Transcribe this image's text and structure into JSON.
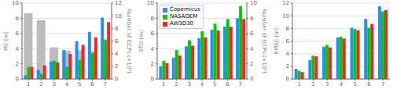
{
  "chart_data": [
    {
      "type": "bar",
      "categories": [
        1,
        2,
        3,
        4,
        5,
        6,
        7
      ],
      "ylabel": "ME (m)",
      "y2label": "Number of GCPs (×10⁴)",
      "ylim": [
        0,
        10
      ],
      "yticks": [
        0,
        2,
        4,
        6,
        8,
        10
      ],
      "y2lim": [
        0,
        12
      ],
      "y2ticks": [
        0,
        2,
        4,
        6,
        8,
        10,
        12
      ],
      "grid": true,
      "series": [
        {
          "color": "#BBBBBB",
          "axis": "y2",
          "values": [
            10.4,
            9.3,
            5.0,
            4.5,
            4.5,
            4.4,
            2.0
          ]
        },
        {
          "name": "Copernicus",
          "color": "#1E90FF",
          "values": [
            0.5,
            1.2,
            2.3,
            3.8,
            5.0,
            6.2,
            8.1
          ]
        },
        {
          "name": "NASADEM",
          "color": "#00CC00",
          "values": [
            1.6,
            0.7,
            2.4,
            1.6,
            2.5,
            3.4,
            5.2
          ]
        },
        {
          "name": "AW3D30",
          "color": "#FF2020",
          "values": [
            1.6,
            1.8,
            2.2,
            3.3,
            4.5,
            5.5,
            7.5
          ]
        }
      ]
    },
    {
      "type": "bar",
      "categories": [
        1,
        2,
        3,
        4,
        5,
        6,
        7
      ],
      "ylabel": "STD (m)",
      "y2label": "Number of GCPs (×10⁴)",
      "ylim": [
        0,
        10
      ],
      "yticks": [
        0,
        2,
        4,
        6,
        8,
        10
      ],
      "y2lim": [
        0,
        10
      ],
      "y2ticks": [
        0,
        2,
        4,
        6,
        8,
        10
      ],
      "grid": true,
      "legend": "upper left",
      "series": [
        {
          "name": "Copernicus",
          "color": "#1E90FF",
          "values": [
            1.7,
            2.8,
            4.3,
            5.4,
            6.5,
            6.9,
            8.0
          ]
        },
        {
          "name": "NASADEM",
          "color": "#00CC00",
          "values": [
            2.4,
            3.8,
            5.1,
            6.3,
            7.3,
            7.9,
            9.6
          ]
        },
        {
          "name": "AW3D30",
          "color": "#FF2020",
          "values": [
            2.1,
            3.1,
            4.4,
            5.5,
            6.4,
            6.9,
            7.9
          ]
        }
      ]
    },
    {
      "type": "bar",
      "categories": [
        1,
        2,
        3,
        4,
        5,
        6,
        7
      ],
      "ylabel": "RMSE (m)",
      "ylim": [
        0,
        12
      ],
      "yticks": [
        0,
        2,
        4,
        6,
        8,
        10,
        12
      ],
      "grid": true,
      "series": [
        {
          "name": "Copernicus",
          "color": "#1E90FF",
          "values": [
            1.6,
            3.0,
            5.1,
            6.6,
            8.1,
            9.5,
            11.5
          ]
        },
        {
          "name": "NASADEM",
          "color": "#00CC00",
          "values": [
            1.3,
            3.7,
            5.4,
            6.7,
            7.9,
            8.1,
            10.7
          ]
        },
        {
          "name": "AW3D30",
          "color": "#FF2020",
          "values": [
            1.1,
            3.6,
            5.0,
            6.4,
            7.7,
            8.7,
            10.9
          ]
        }
      ]
    }
  ]
}
